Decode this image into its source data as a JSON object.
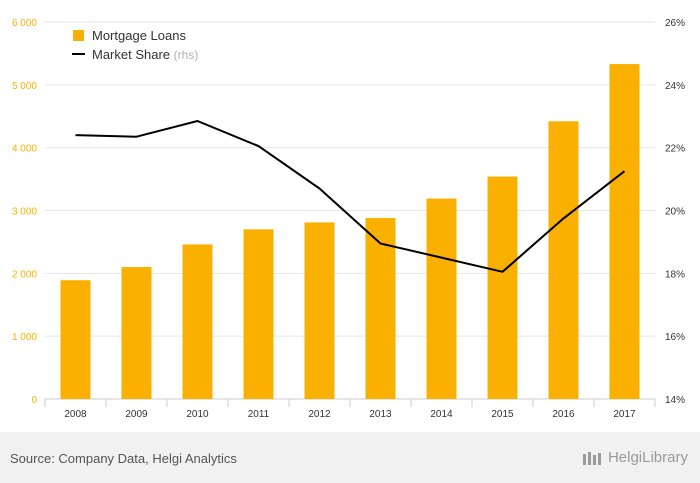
{
  "chart_data": {
    "type": "bar",
    "categories": [
      "2008",
      "2009",
      "2010",
      "2011",
      "2012",
      "2013",
      "2014",
      "2015",
      "2016",
      "2017"
    ],
    "series": [
      {
        "name": "Mortgage Loans",
        "type": "bar",
        "axis": "left",
        "color": "#F9B000",
        "values": [
          1890,
          2100,
          2460,
          2700,
          2810,
          2880,
          3190,
          3540,
          4420,
          5330
        ]
      },
      {
        "name": "Market Share",
        "type": "line",
        "axis": "right",
        "color": "#000000",
        "values": [
          22.4,
          22.35,
          22.85,
          22.05,
          20.7,
          18.95,
          18.5,
          18.05,
          19.75,
          21.25
        ]
      }
    ],
    "legend": {
      "bar_label": "Mortgage Loans",
      "line_label": "Market Share",
      "line_suffix": "(rhs)",
      "position": "top-left"
    },
    "y_left": {
      "ylim": [
        0,
        6000
      ],
      "ticks": [
        "0",
        "1 000",
        "2 000",
        "3 000",
        "4 000",
        "5 000",
        "6 000"
      ],
      "color": "#F9B000"
    },
    "y_right": {
      "ylim": [
        14,
        26
      ],
      "ticks": [
        "14%",
        "16%",
        "18%",
        "20%",
        "22%",
        "24%",
        "26%"
      ]
    },
    "grid": true
  },
  "footer": {
    "source": "Source: Company Data, Helgi Analytics",
    "logo": "HelgiLibrary"
  }
}
